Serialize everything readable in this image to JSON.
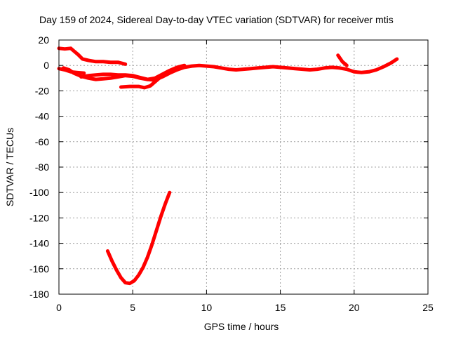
{
  "chart_data": {
    "type": "line",
    "title": "Day 159 of 2024, Sidereal Day-to-day VTEC variation (SDTVAR) for receiver mtis",
    "xlabel": "GPS time / hours",
    "ylabel": "SDTVAR / TECUs",
    "xlim": [
      0,
      25
    ],
    "ylim": [
      -180,
      20
    ],
    "x_ticks": [
      0,
      5,
      10,
      15,
      20,
      25
    ],
    "y_ticks": [
      20,
      0,
      -20,
      -40,
      -60,
      -80,
      -100,
      -120,
      -140,
      -160,
      -180
    ],
    "grid": true,
    "legend": "none",
    "series": [
      {
        "color": "#ff0000",
        "values": [
          [
            0.0,
            13.5
          ],
          [
            0.4,
            13.0
          ],
          [
            0.8,
            13.5
          ],
          [
            1.0,
            11.5
          ],
          [
            1.3,
            8.5
          ],
          [
            1.6,
            5.0
          ],
          [
            2.0,
            4.0
          ],
          [
            2.5,
            3.0
          ],
          [
            3.0,
            3.0
          ],
          [
            3.5,
            2.5
          ],
          [
            4.0,
            2.5
          ],
          [
            4.5,
            1.0
          ]
        ]
      },
      {
        "color": "#ff0000",
        "values": [
          [
            0.0,
            -2.5
          ],
          [
            0.4,
            -3.5
          ],
          [
            0.8,
            -5.0
          ],
          [
            1.2,
            -5.5
          ],
          [
            1.7,
            -6.0
          ]
        ]
      },
      {
        "color": "#ff0000",
        "values": [
          [
            0.3,
            -2.0
          ],
          [
            0.7,
            -3.5
          ],
          [
            1.0,
            -6.0
          ],
          [
            1.5,
            -8.5
          ],
          [
            2.0,
            -10.0
          ],
          [
            2.5,
            -11.0
          ],
          [
            3.0,
            -10.5
          ],
          [
            3.5,
            -10.0
          ],
          [
            4.0,
            -9.0
          ],
          [
            4.5,
            -8.0
          ],
          [
            5.0,
            -8.5
          ],
          [
            5.5,
            -10.0
          ],
          [
            6.0,
            -11.0
          ],
          [
            6.5,
            -10.0
          ],
          [
            7.0,
            -7.0
          ],
          [
            7.5,
            -4.0
          ],
          [
            8.0,
            -1.5
          ],
          [
            8.5,
            0.0
          ]
        ]
      },
      {
        "color": "#ff0000",
        "values": [
          [
            1.5,
            -9.0
          ],
          [
            2.0,
            -8.0
          ],
          [
            2.5,
            -7.5
          ],
          [
            3.0,
            -7.0
          ],
          [
            3.5,
            -7.0
          ],
          [
            4.0,
            -7.5
          ],
          [
            4.5,
            -7.5
          ],
          [
            5.0,
            -8.0
          ],
          [
            5.5,
            -9.5
          ],
          [
            6.0,
            -11.0
          ],
          [
            6.5,
            -11.5
          ],
          [
            7.0,
            -9.0
          ],
          [
            7.5,
            -6.0
          ],
          [
            8.0,
            -3.5
          ],
          [
            8.5,
            -1.5
          ],
          [
            9.0,
            -0.5
          ],
          [
            9.5,
            0.0
          ],
          [
            10.0,
            -0.5
          ],
          [
            10.5,
            -1.0
          ],
          [
            11.0,
            -2.0
          ],
          [
            11.5,
            -3.0
          ],
          [
            12.0,
            -3.5
          ],
          [
            12.5,
            -3.0
          ],
          [
            13.0,
            -2.5
          ],
          [
            13.5,
            -2.0
          ],
          [
            14.0,
            -1.5
          ],
          [
            14.5,
            -1.0
          ],
          [
            15.0,
            -1.5
          ],
          [
            15.5,
            -2.0
          ],
          [
            16.0,
            -2.5
          ],
          [
            16.5,
            -3.0
          ],
          [
            17.0,
            -3.5
          ],
          [
            17.5,
            -3.0
          ],
          [
            18.0,
            -2.0
          ],
          [
            18.5,
            -1.5
          ],
          [
            19.0,
            -2.0
          ],
          [
            19.5,
            -3.0
          ],
          [
            20.0,
            -5.0
          ],
          [
            20.5,
            -5.5
          ],
          [
            21.0,
            -5.0
          ],
          [
            21.5,
            -3.5
          ],
          [
            22.0,
            -1.0
          ],
          [
            22.5,
            2.0
          ],
          [
            22.9,
            5.0
          ]
        ]
      },
      {
        "color": "#ff0000",
        "values": [
          [
            4.2,
            -17.0
          ],
          [
            4.8,
            -16.5
          ],
          [
            5.4,
            -16.5
          ],
          [
            5.8,
            -17.5
          ],
          [
            6.2,
            -16.0
          ],
          [
            6.6,
            -12.0
          ],
          [
            7.0,
            -8.0
          ]
        ]
      },
      {
        "color": "#ff0000",
        "values": [
          [
            18.9,
            8.0
          ],
          [
            19.2,
            3.0
          ],
          [
            19.5,
            0.0
          ]
        ]
      },
      {
        "color": "#ff0000",
        "values": [
          [
            3.3,
            -146.0
          ],
          [
            3.6,
            -154.0
          ],
          [
            3.9,
            -161.0
          ],
          [
            4.2,
            -167.0
          ],
          [
            4.5,
            -171.0
          ],
          [
            4.8,
            -171.5
          ],
          [
            5.1,
            -169.5
          ],
          [
            5.4,
            -165.0
          ],
          [
            5.7,
            -159.0
          ],
          [
            6.0,
            -151.0
          ],
          [
            6.3,
            -141.0
          ],
          [
            6.6,
            -130.0
          ],
          [
            6.9,
            -119.0
          ],
          [
            7.2,
            -109.0
          ],
          [
            7.5,
            -100.0
          ]
        ]
      }
    ]
  }
}
